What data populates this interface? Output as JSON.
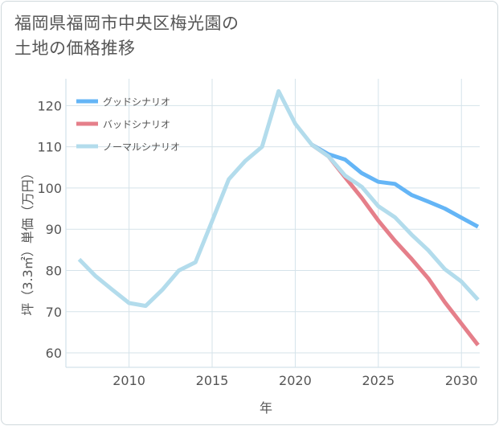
{
  "title_line1": "福岡県福岡市中央区梅光園の",
  "title_line2": "土地の価格推移",
  "chart_data": {
    "type": "line",
    "title": "福岡県福岡市中央区梅光園の土地の価格推移",
    "xlabel": "年",
    "ylabel": "坪（3.3㎡）単価（万円）",
    "xlim": [
      2006.2,
      2031.1
    ],
    "ylim": [
      56.5,
      126.5
    ],
    "x_ticks": [
      2010,
      2015,
      2020,
      2025,
      2030
    ],
    "y_ticks": [
      60,
      70,
      80,
      90,
      100,
      110,
      120
    ],
    "grid": true,
    "legend_position": "top-left",
    "series": [
      {
        "name": "グッドシナリオ",
        "color": "#64b5f6",
        "x": [
          2021,
          2022,
          2023,
          2024,
          2025,
          2026,
          2027,
          2028,
          2029,
          2030,
          2031
        ],
        "y": [
          110.5,
          108.2,
          106.9,
          103.6,
          101.5,
          101.0,
          98.3,
          96.7,
          95.0,
          92.8,
          90.6
        ]
      },
      {
        "name": "バッドシナリオ",
        "color": "#e57f8a",
        "x": [
          2021,
          2022,
          2023,
          2024,
          2025,
          2026,
          2027,
          2028,
          2029,
          2030,
          2031
        ],
        "y": [
          110.5,
          107.7,
          102.6,
          97.6,
          92.1,
          87.2,
          82.8,
          78.1,
          72.3,
          67.1,
          61.9
        ]
      },
      {
        "name": "ノーマルシナリオ",
        "color": "#b3dcec",
        "x": [
          2007,
          2008,
          2009,
          2010,
          2011,
          2012,
          2013,
          2014,
          2015,
          2016,
          2017,
          2018,
          2019,
          2020,
          2021,
          2022,
          2023,
          2024,
          2025,
          2026,
          2027,
          2028,
          2029,
          2030,
          2031
        ],
        "y": [
          82.7,
          78.6,
          75.3,
          72.1,
          71.4,
          75.3,
          80.0,
          82.0,
          92.0,
          102.1,
          106.6,
          110.0,
          123.5,
          115.6,
          110.5,
          107.7,
          103.0,
          100.3,
          95.6,
          92.9,
          88.7,
          84.9,
          80.3,
          77.3,
          72.9
        ]
      }
    ]
  }
}
